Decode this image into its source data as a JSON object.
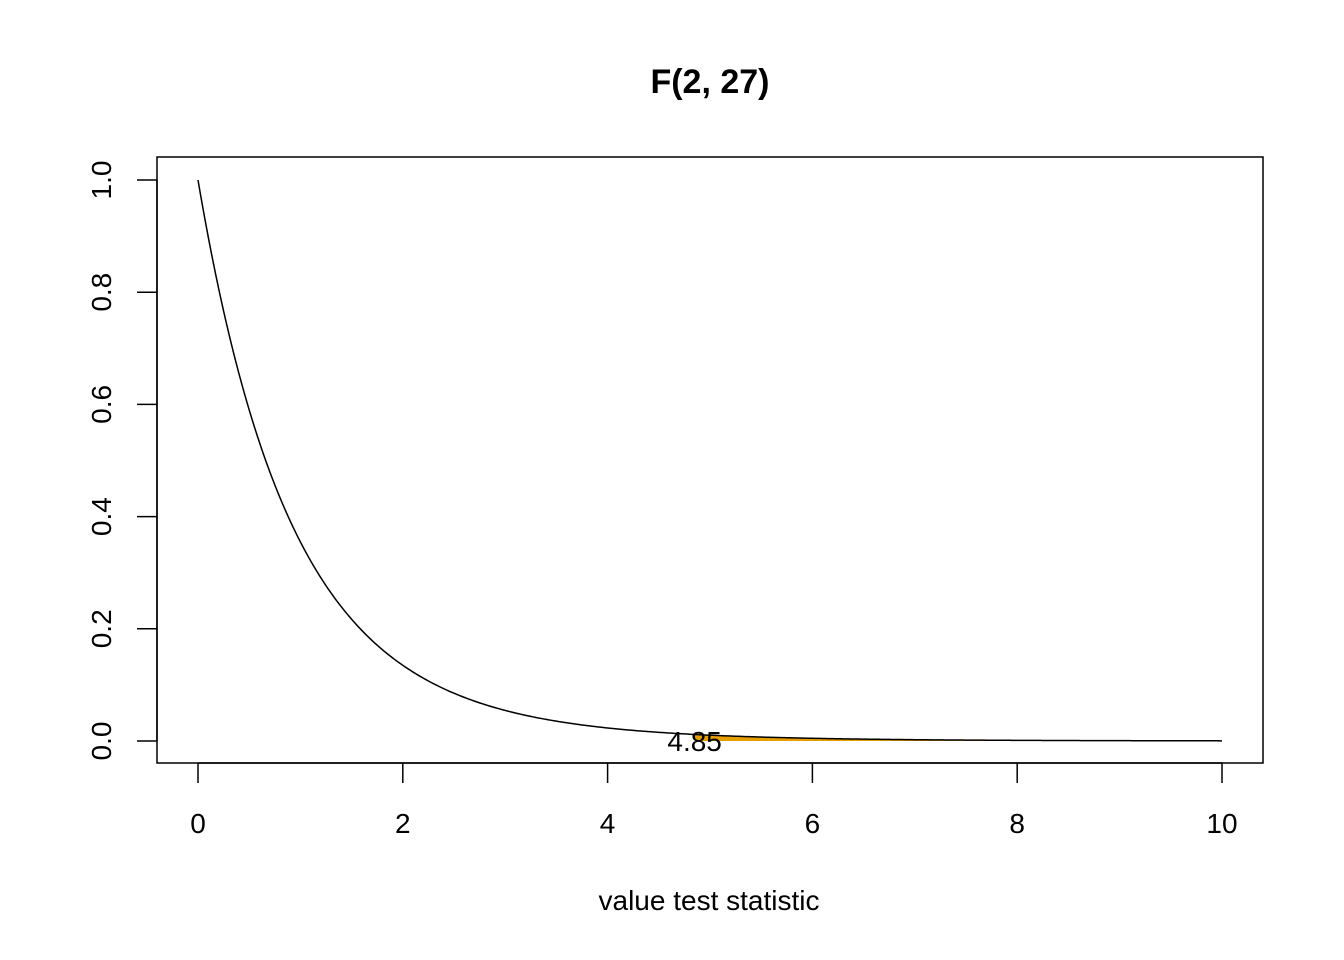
{
  "chart_data": {
    "type": "line",
    "title": "F(2, 27)",
    "xlabel": "value test statistic",
    "ylabel": "",
    "xlim": [
      0,
      10
    ],
    "ylim": [
      0,
      1
    ],
    "x_ticks": [
      "0",
      "2",
      "4",
      "6",
      "8",
      "10"
    ],
    "y_ticks": [
      "0.0",
      "0.2",
      "0.4",
      "0.6",
      "0.8",
      "1.0"
    ],
    "grid": false,
    "legend": "none",
    "distribution": {
      "df1": 2,
      "df2": 27
    },
    "x": [
      0,
      0.5,
      1,
      1.5,
      2,
      2.5,
      3,
      3.5,
      4,
      4.5,
      5,
      6,
      7,
      8,
      9,
      10
    ],
    "y": [
      1.0,
      0.604,
      0.371,
      0.233,
      0.149,
      0.097,
      0.064,
      0.043,
      0.029,
      0.02,
      0.014,
      0.007,
      0.004,
      0.002,
      0.001,
      0.0006
    ],
    "shaded_region": {
      "from": 4.85,
      "to": 10,
      "color": "#e69f00"
    },
    "annotation": {
      "text": "4.85",
      "x": 4.85,
      "y": 0
    },
    "line_color": "#000000"
  }
}
